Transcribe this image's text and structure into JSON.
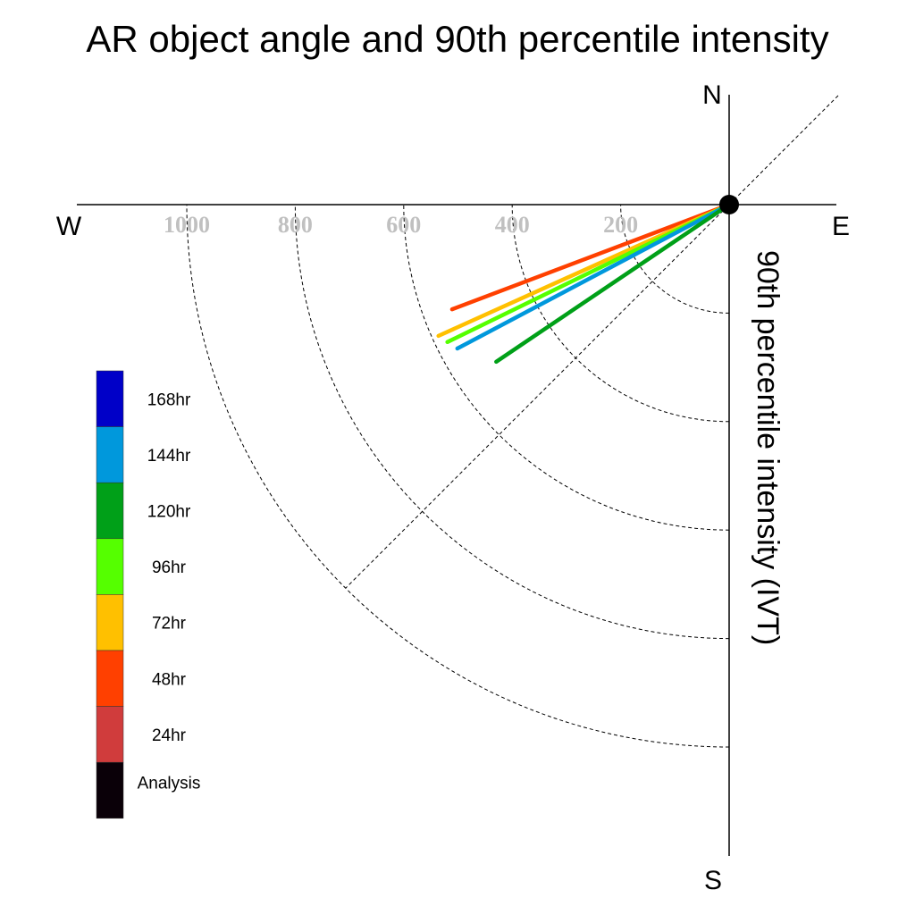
{
  "chart_data": {
    "type": "polar-vector",
    "title": "AR object angle and 90th percentile intensity",
    "radial_axis_label": "90th percentile intensity (IVT)",
    "compass": {
      "north": "N",
      "south": "S",
      "east": "E",
      "west": "W"
    },
    "radial_ticks": [
      200,
      400,
      600,
      800,
      1000
    ],
    "radial_range": [
      0,
      1000
    ],
    "units_angle": "degrees clockwise from north",
    "series": [
      {
        "name": "48hr",
        "color": "#ff4000",
        "angle_deg": 249.3,
        "intensity": 546
      },
      {
        "name": "72hr",
        "color": "#ffc000",
        "angle_deg": 245.7,
        "intensity": 588
      },
      {
        "name": "96hr",
        "color": "#55ff00",
        "angle_deg": 244.0,
        "intensity": 578
      },
      {
        "name": "144hr",
        "color": "#0098dc",
        "angle_deg": 242.1,
        "intensity": 567
      },
      {
        "name": "120hr",
        "color": "#00a018",
        "angle_deg": 236.0,
        "intensity": 518
      }
    ],
    "legend": {
      "placement": "left",
      "entries": [
        {
          "label": "168hr",
          "color": "#0000c8"
        },
        {
          "label": "144hr",
          "color": "#0098dc"
        },
        {
          "label": "120hr",
          "color": "#00a018"
        },
        {
          "label": "96hr",
          "color": "#55ff00"
        },
        {
          "label": "72hr",
          "color": "#ffc000"
        },
        {
          "label": "48hr",
          "color": "#ff4000"
        },
        {
          "label": "24hr",
          "color": "#d03c3c"
        },
        {
          "label": "Analysis",
          "color": "#0a0008"
        }
      ]
    }
  }
}
